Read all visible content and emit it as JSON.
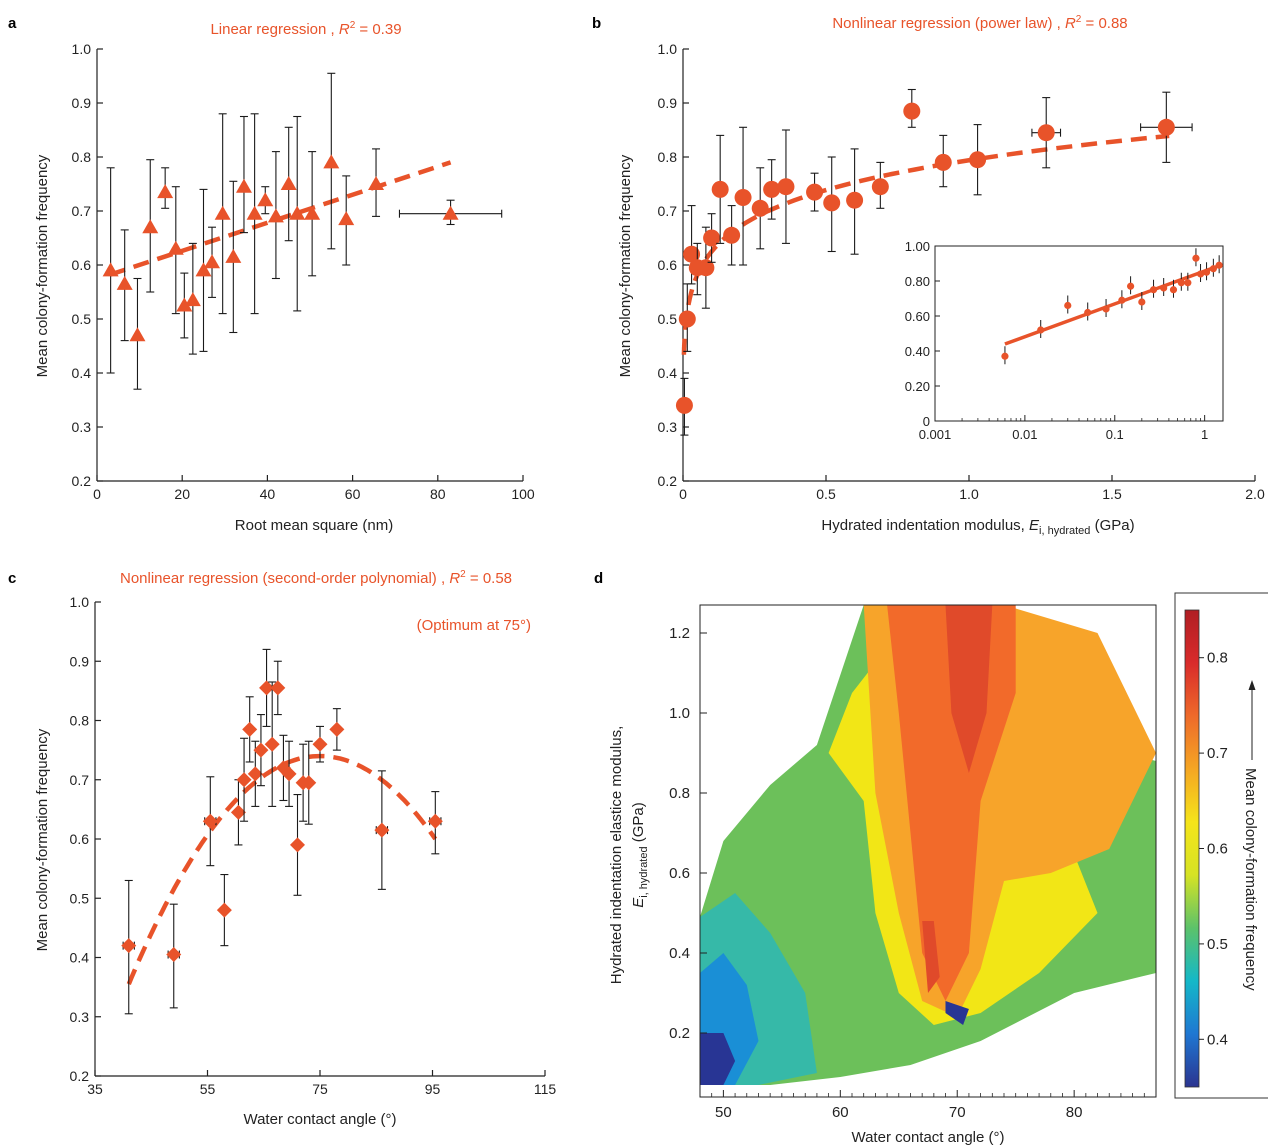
{
  "colors": {
    "marker": "#e8532a",
    "axis": "#222222",
    "error_bar": "#1a1a1a",
    "title": "#e8532a"
  },
  "chart_data": [
    {
      "panel": "a",
      "type": "scatter",
      "marker": "triangle",
      "title": "Linear regression , R² = 0.39",
      "title_parts": {
        "prefix": "Linear regression , ",
        "r": "R",
        "sup": "2",
        "suffix": " = 0.39"
      },
      "xlabel": "Root mean square (nm)",
      "ylabel": "Mean colony-formation frequency",
      "xlim": [
        0,
        100
      ],
      "ylim": [
        0.2,
        1.0
      ],
      "xticks": [
        "0",
        "20",
        "40",
        "60",
        "80",
        "100"
      ],
      "yticks": [
        "0.2",
        "0.3",
        "0.4",
        "0.5",
        "0.6",
        "0.7",
        "0.8",
        "0.9",
        "1.0"
      ],
      "points": [
        {
          "x": 3.2,
          "y": 0.59,
          "ylo": 0.4,
          "yhi": 0.78
        },
        {
          "x": 6.5,
          "y": 0.565,
          "ylo": 0.46,
          "yhi": 0.665
        },
        {
          "x": 9.5,
          "y": 0.47,
          "ylo": 0.37,
          "yhi": 0.575
        },
        {
          "x": 12.5,
          "y": 0.67,
          "ylo": 0.55,
          "yhi": 0.795
        },
        {
          "x": 16,
          "y": 0.735,
          "ylo": 0.705,
          "yhi": 0.78
        },
        {
          "x": 18.5,
          "y": 0.63,
          "ylo": 0.51,
          "yhi": 0.745
        },
        {
          "x": 20.5,
          "y": 0.525,
          "ylo": 0.465,
          "yhi": 0.585
        },
        {
          "x": 22.5,
          "y": 0.535,
          "ylo": 0.435,
          "yhi": 0.64
        },
        {
          "x": 25,
          "y": 0.59,
          "ylo": 0.44,
          "yhi": 0.74
        },
        {
          "x": 27,
          "y": 0.605,
          "ylo": 0.54,
          "yhi": 0.67
        },
        {
          "x": 29.5,
          "y": 0.695,
          "ylo": 0.51,
          "yhi": 0.88
        },
        {
          "x": 32,
          "y": 0.615,
          "ylo": 0.475,
          "yhi": 0.755
        },
        {
          "x": 34.5,
          "y": 0.745,
          "ylo": 0.66,
          "yhi": 0.875
        },
        {
          "x": 37,
          "y": 0.695,
          "ylo": 0.51,
          "yhi": 0.88
        },
        {
          "x": 39.5,
          "y": 0.72,
          "ylo": 0.695,
          "yhi": 0.745
        },
        {
          "x": 42,
          "y": 0.69,
          "ylo": 0.575,
          "yhi": 0.81
        },
        {
          "x": 45,
          "y": 0.75,
          "ylo": 0.645,
          "yhi": 0.855
        },
        {
          "x": 47,
          "y": 0.695,
          "ylo": 0.515,
          "yhi": 0.875
        },
        {
          "x": 50.5,
          "y": 0.695,
          "ylo": 0.58,
          "yhi": 0.81
        },
        {
          "x": 55,
          "y": 0.79,
          "ylo": 0.63,
          "yhi": 0.955
        },
        {
          "x": 58.5,
          "y": 0.685,
          "ylo": 0.6,
          "yhi": 0.765
        },
        {
          "x": 65.5,
          "y": 0.75,
          "ylo": 0.69,
          "yhi": 0.815
        },
        {
          "x": 83,
          "y": 0.695,
          "ylo": 0.675,
          "yhi": 0.72,
          "xlo": 71,
          "xhi": 95
        }
      ],
      "fit": {
        "x": [
          3,
          83
        ],
        "y": [
          0.582,
          0.79
        ]
      }
    },
    {
      "panel": "b",
      "type": "scatter",
      "marker": "circle",
      "title": "Nonlinear regression (power law) , R² = 0.88",
      "title_parts": {
        "prefix": "Nonlinear regression (power law) , ",
        "r": "R",
        "sup": "2",
        "suffix": " = 0.88"
      },
      "xlabel": "Hydrated indentation modulus, E i, hydrated (GPa)",
      "xlabel_parts": {
        "prefix": "Hydrated indentation modulus, ",
        "e": "E",
        "sub": "i, hydrated",
        "suffix": " (GPa)"
      },
      "ylabel": "Mean colony-formation frequency",
      "xlim": [
        0,
        2.0
      ],
      "ylim": [
        0.2,
        1.0
      ],
      "xticks": [
        "0",
        "0.5",
        "1.0",
        "1.5",
        "2.0"
      ],
      "yticks": [
        "0.2",
        "0.3",
        "0.4",
        "0.5",
        "0.6",
        "0.7",
        "0.8",
        "0.9",
        "1.0"
      ],
      "points": [
        {
          "x": 0.005,
          "y": 0.34,
          "ylo": 0.285,
          "yhi": 0.39
        },
        {
          "x": 0.015,
          "y": 0.5,
          "ylo": 0.44,
          "yhi": 0.565
        },
        {
          "x": 0.03,
          "y": 0.62,
          "ylo": 0.565,
          "yhi": 0.71
        },
        {
          "x": 0.05,
          "y": 0.595,
          "ylo": 0.545,
          "yhi": 0.64
        },
        {
          "x": 0.08,
          "y": 0.595,
          "ylo": 0.52,
          "yhi": 0.67
        },
        {
          "x": 0.1,
          "y": 0.65,
          "ylo": 0.605,
          "yhi": 0.695
        },
        {
          "x": 0.13,
          "y": 0.74,
          "ylo": 0.64,
          "yhi": 0.84
        },
        {
          "x": 0.17,
          "y": 0.655,
          "ylo": 0.6,
          "yhi": 0.71
        },
        {
          "x": 0.21,
          "y": 0.725,
          "ylo": 0.6,
          "yhi": 0.855
        },
        {
          "x": 0.27,
          "y": 0.705,
          "ylo": 0.63,
          "yhi": 0.78
        },
        {
          "x": 0.31,
          "y": 0.74,
          "ylo": 0.685,
          "yhi": 0.795
        },
        {
          "x": 0.36,
          "y": 0.745,
          "ylo": 0.64,
          "yhi": 0.85
        },
        {
          "x": 0.46,
          "y": 0.735,
          "ylo": 0.7,
          "yhi": 0.77
        },
        {
          "x": 0.52,
          "y": 0.715,
          "ylo": 0.625,
          "yhi": 0.8
        },
        {
          "x": 0.6,
          "y": 0.72,
          "ylo": 0.62,
          "yhi": 0.815
        },
        {
          "x": 0.69,
          "y": 0.745,
          "ylo": 0.705,
          "yhi": 0.79
        },
        {
          "x": 0.8,
          "y": 0.885,
          "ylo": 0.855,
          "yhi": 0.925
        },
        {
          "x": 0.91,
          "y": 0.79,
          "ylo": 0.745,
          "yhi": 0.84
        },
        {
          "x": 1.03,
          "y": 0.795,
          "ylo": 0.73,
          "yhi": 0.86
        },
        {
          "x": 1.27,
          "y": 0.845,
          "ylo": 0.78,
          "yhi": 0.91,
          "xlo": 1.22,
          "xhi": 1.32
        },
        {
          "x": 1.69,
          "y": 0.855,
          "ylo": 0.79,
          "yhi": 0.92,
          "xlo": 1.6,
          "xhi": 1.78
        }
      ],
      "fit": {
        "type": "power",
        "a": 0.794,
        "b": 0.104,
        "xrange": [
          0.003,
          1.7
        ]
      },
      "inset": {
        "xscale": "log",
        "xlim": [
          0.001,
          1.6
        ],
        "ylim": [
          0,
          1.0
        ],
        "xticks": [
          "0.001",
          "0.01",
          "0.1",
          "1"
        ],
        "yticks": [
          "0",
          "0.20",
          "0.40",
          "0.60",
          "0.80",
          "1.00"
        ],
        "points": [
          {
            "x": 0.006,
            "y": 0.37
          },
          {
            "x": 0.015,
            "y": 0.52
          },
          {
            "x": 0.03,
            "y": 0.66
          },
          {
            "x": 0.05,
            "y": 0.62
          },
          {
            "x": 0.08,
            "y": 0.64
          },
          {
            "x": 0.12,
            "y": 0.69
          },
          {
            "x": 0.15,
            "y": 0.77
          },
          {
            "x": 0.2,
            "y": 0.68
          },
          {
            "x": 0.27,
            "y": 0.75
          },
          {
            "x": 0.35,
            "y": 0.76
          },
          {
            "x": 0.45,
            "y": 0.75
          },
          {
            "x": 0.55,
            "y": 0.79
          },
          {
            "x": 0.65,
            "y": 0.79
          },
          {
            "x": 0.8,
            "y": 0.93
          },
          {
            "x": 0.9,
            "y": 0.84
          },
          {
            "x": 1.05,
            "y": 0.85
          },
          {
            "x": 1.25,
            "y": 0.87
          },
          {
            "x": 1.45,
            "y": 0.89
          }
        ],
        "fit": {
          "x": [
            0.006,
            1.5
          ],
          "y": [
            0.44,
            0.89
          ]
        }
      }
    },
    {
      "panel": "c",
      "type": "scatter",
      "marker": "diamond",
      "title": "Nonlinear regression (second-order polynomial) , R² = 0.58",
      "title_parts": {
        "prefix": "Nonlinear regression (second-order polynomial) , ",
        "r": "R",
        "sup": "2",
        "suffix": " = 0.58"
      },
      "annotation": "(Optimum at 75°)",
      "xlabel": "Water contact angle (°)",
      "ylabel": "Mean colony-formation frequency",
      "xlim": [
        35,
        115
      ],
      "ylim": [
        0.2,
        1.0
      ],
      "xticks": [
        "35",
        "55",
        "75",
        "95",
        "115"
      ],
      "yticks": [
        "0.2",
        "0.3",
        "0.4",
        "0.5",
        "0.6",
        "0.7",
        "0.8",
        "0.9",
        "1.0"
      ],
      "points": [
        {
          "x": 41,
          "y": 0.42,
          "ylo": 0.305,
          "yhi": 0.53,
          "xlo": 40,
          "xhi": 42
        },
        {
          "x": 49,
          "y": 0.405,
          "ylo": 0.315,
          "yhi": 0.49,
          "xlo": 48,
          "xhi": 50
        },
        {
          "x": 55.5,
          "y": 0.63,
          "ylo": 0.555,
          "yhi": 0.705,
          "xlo": 54.5,
          "xhi": 56.5
        },
        {
          "x": 58,
          "y": 0.48,
          "ylo": 0.42,
          "yhi": 0.54
        },
        {
          "x": 60.5,
          "y": 0.645,
          "ylo": 0.59,
          "yhi": 0.7
        },
        {
          "x": 61.5,
          "y": 0.7,
          "ylo": 0.63,
          "yhi": 0.77
        },
        {
          "x": 62.5,
          "y": 0.785,
          "ylo": 0.73,
          "yhi": 0.84
        },
        {
          "x": 63.5,
          "y": 0.71,
          "ylo": 0.655,
          "yhi": 0.765
        },
        {
          "x": 64.5,
          "y": 0.75,
          "ylo": 0.69,
          "yhi": 0.81
        },
        {
          "x": 65.5,
          "y": 0.855,
          "ylo": 0.79,
          "yhi": 0.92
        },
        {
          "x": 66.5,
          "y": 0.76,
          "ylo": 0.655,
          "yhi": 0.865
        },
        {
          "x": 67.5,
          "y": 0.855,
          "ylo": 0.81,
          "yhi": 0.9
        },
        {
          "x": 68.5,
          "y": 0.72,
          "ylo": 0.665,
          "yhi": 0.775
        },
        {
          "x": 69.5,
          "y": 0.71,
          "ylo": 0.655,
          "yhi": 0.765
        },
        {
          "x": 71,
          "y": 0.59,
          "ylo": 0.505,
          "yhi": 0.675
        },
        {
          "x": 72,
          "y": 0.695,
          "ylo": 0.63,
          "yhi": 0.76
        },
        {
          "x": 73,
          "y": 0.695,
          "ylo": 0.625,
          "yhi": 0.765
        },
        {
          "x": 75,
          "y": 0.76,
          "ylo": 0.73,
          "yhi": 0.79
        },
        {
          "x": 78,
          "y": 0.785,
          "ylo": 0.75,
          "yhi": 0.82
        },
        {
          "x": 86,
          "y": 0.615,
          "ylo": 0.515,
          "yhi": 0.715,
          "xlo": 85,
          "xhi": 87
        },
        {
          "x": 95.5,
          "y": 0.63,
          "ylo": 0.575,
          "yhi": 0.68,
          "xlo": 94.5,
          "xhi": 96.5
        }
      ],
      "fit": {
        "type": "quadratic",
        "vertex_x": 75,
        "vertex_y": 0.74,
        "a": -0.000333,
        "xrange": [
          41,
          95.5
        ]
      }
    },
    {
      "panel": "d",
      "type": "heatmap",
      "xlabel": "Water contact angle (°)",
      "ylabel_line1": "Hydrated indentation elastice modulus,",
      "ylabel_line2_parts": {
        "e": "E",
        "sub": "i, hydrated",
        "suffix": " (GPa)"
      },
      "xlim": [
        48,
        87
      ],
      "ylim": [
        0.04,
        1.27
      ],
      "xticks": [
        "50",
        "60",
        "70",
        "80"
      ],
      "yticks": [
        "0.2",
        "0.4",
        "0.6",
        "0.8",
        "1.0",
        "1.2"
      ],
      "colorbar": {
        "label": "Mean colony-formation frequency",
        "range": [
          0.35,
          0.85
        ],
        "ticks": [
          "0.4",
          "0.5",
          "0.6",
          "0.7",
          "0.8"
        ],
        "colors": [
          "#2b3490",
          "#1f77d2",
          "#14b8c8",
          "#5cc26a",
          "#d6e324",
          "#f5e41a",
          "#f5a623",
          "#ee6a2a",
          "#d92b2b",
          "#b01e23"
        ]
      },
      "regions": [
        {
          "level": 0.46,
          "color": "#1a8fd6"
        },
        {
          "level": 0.52,
          "color": "#36b9a8"
        },
        {
          "level": 0.6,
          "color": "#6cc05a"
        },
        {
          "level": 0.65,
          "color": "#f2e616"
        },
        {
          "level": 0.7,
          "color": "#f7a42a"
        },
        {
          "level": 0.77,
          "color": "#f26a2a"
        },
        {
          "level": 0.83,
          "color": "#e04a2a"
        },
        {
          "level": 0.37,
          "color": "#283594"
        }
      ]
    }
  ],
  "panels": [
    {
      "label": "a"
    },
    {
      "label": "b"
    },
    {
      "label": "c"
    },
    {
      "label": "d"
    }
  ]
}
